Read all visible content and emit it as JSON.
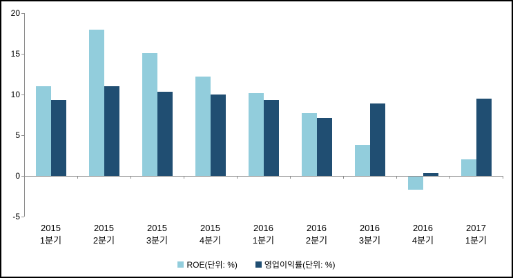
{
  "chart_data": {
    "type": "bar",
    "title": "",
    "xlabel": "",
    "ylabel": "",
    "categories": [
      "2015 1분기",
      "2015 2분기",
      "2015 3분기",
      "2015 4분기",
      "2016 1분기",
      "2016 2분기",
      "2016 3분기",
      "2016 4분기",
      "2017 1분기"
    ],
    "series": [
      {
        "name": "ROE(단위: %)",
        "color": "#92CDDC",
        "values": [
          11.0,
          18.0,
          15.1,
          12.2,
          10.2,
          7.7,
          3.8,
          -1.6,
          2.0
        ]
      },
      {
        "name": "영업이익률(단위: %)",
        "color": "#204E72",
        "values": [
          9.3,
          11.0,
          10.3,
          10.0,
          9.3,
          7.1,
          8.9,
          0.3,
          9.5
        ]
      }
    ],
    "y_axis": {
      "min": -5,
      "max": 20,
      "step": 5,
      "tick_labels": [
        "20",
        "15",
        "10",
        "5",
        "0",
        "-5"
      ]
    },
    "legend_position": "bottom",
    "grid": false,
    "axis_color": "#8C8C8C",
    "background": "#FFFFFF"
  }
}
